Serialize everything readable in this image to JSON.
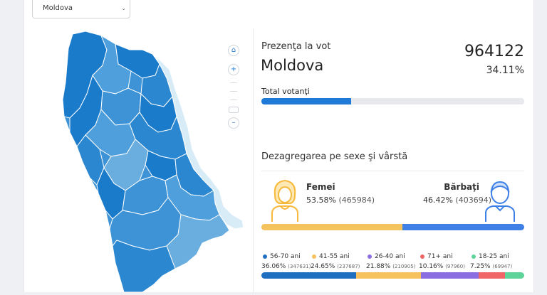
{
  "region_select": {
    "value": "Moldova"
  },
  "colors": {
    "accent": "#1f7ad8",
    "female": "#f6c25e",
    "male": "#3f80e6",
    "map_dark": "#1b7bcb",
    "map_mid": "#3d93d6",
    "map_light": "#6aaee0",
    "map_pale": "#d8ecf8"
  },
  "map_controls": [
    "home-icon",
    "plus-icon",
    "minus-icon"
  ],
  "summary": {
    "title": "Prezenţa la vot",
    "region": "Moldova",
    "votes": "964122",
    "percent": "34.11%",
    "percent_value": 34.11,
    "total_label": "Total votanţi"
  },
  "breakdown": {
    "title": "Dezagregarea pe sexe şi vârstă",
    "female": {
      "label": "Femei",
      "percent": "53.58%",
      "count": "(465984)",
      "value": 53.58
    },
    "male": {
      "label": "Bărbaţi",
      "percent": "46.42%",
      "count": "(403694)",
      "value": 46.42
    },
    "ages": [
      {
        "label": "56-70 ani",
        "percent": "36.06%",
        "count": "(347631)",
        "value": 36.06,
        "color": "#1f6fc1"
      },
      {
        "label": "41-55 ani",
        "percent": "24.65%",
        "count": "(237687)",
        "value": 24.65,
        "color": "#f6c25e"
      },
      {
        "label": "26-40 ani",
        "percent": "21.88%",
        "count": "(210905)",
        "value": 21.88,
        "color": "#8a6de0"
      },
      {
        "label": "71+ ani",
        "percent": "10.16%",
        "count": "(97960)",
        "value": 10.16,
        "color": "#f06565"
      },
      {
        "label": "18-25 ani",
        "percent": "7.25%",
        "count": "(69947)",
        "value": 7.25,
        "color": "#5ed39a"
      }
    ]
  }
}
